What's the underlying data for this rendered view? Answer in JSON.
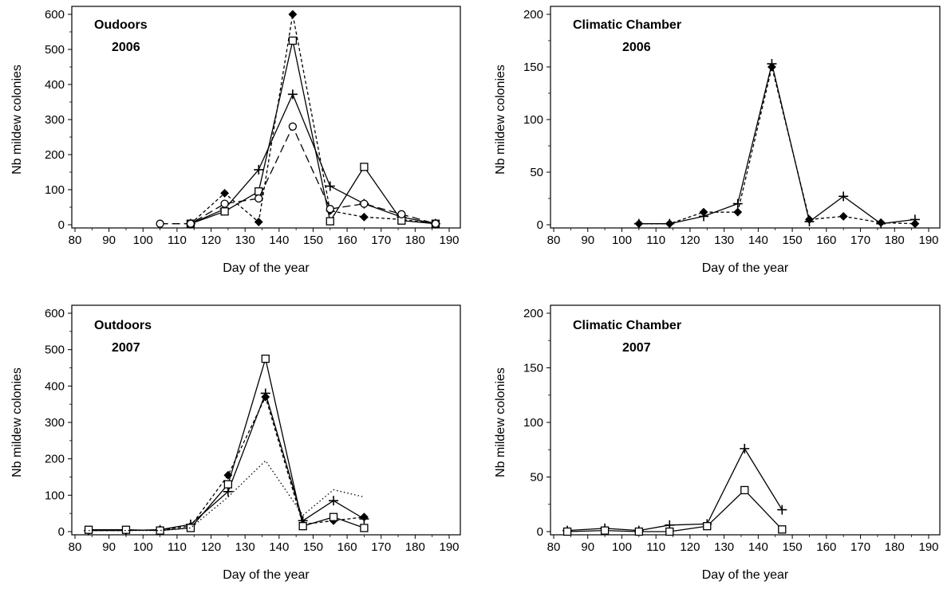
{
  "chart_data": [
    {
      "id": "p1",
      "type": "line",
      "title": "Oudoors",
      "subtitle": "2006",
      "xlabel": "Day of the year",
      "ylabel": "Nb mildew colonies",
      "xlim": [
        80,
        190
      ],
      "ylim": [
        0,
        600
      ],
      "xticks": [
        80,
        90,
        100,
        110,
        120,
        130,
        140,
        150,
        160,
        170,
        180,
        190
      ],
      "yticks": [
        0,
        100,
        200,
        300,
        400,
        500,
        600
      ],
      "series": [
        {
          "marker": "plus",
          "dash": "solid",
          "points": [
            [
              114,
              3
            ],
            [
              124,
              45
            ],
            [
              134,
              157
            ],
            [
              144,
              372
            ],
            [
              155,
              110
            ],
            [
              165,
              60
            ],
            [
              176,
              22
            ],
            [
              186,
              3
            ]
          ]
        },
        {
          "marker": "diamond",
          "dash": "short",
          "points": [
            [
              114,
              3
            ],
            [
              124,
              90
            ],
            [
              134,
              8
            ],
            [
              144,
              600
            ],
            [
              155,
              40
            ],
            [
              165,
              22
            ],
            [
              176,
              15
            ],
            [
              186,
              3
            ]
          ]
        },
        {
          "marker": "square",
          "dash": "solid",
          "points": [
            [
              114,
              3
            ],
            [
              124,
              38
            ],
            [
              134,
              95
            ],
            [
              144,
              525
            ],
            [
              155,
              10
            ],
            [
              165,
              165
            ],
            [
              176,
              12
            ],
            [
              186,
              3
            ]
          ]
        },
        {
          "marker": "circle",
          "dash": "long",
          "points": [
            [
              105,
              3
            ],
            [
              114,
              3
            ],
            [
              124,
              60
            ],
            [
              134,
              75
            ],
            [
              144,
              280
            ],
            [
              155,
              45
            ],
            [
              165,
              60
            ],
            [
              176,
              30
            ],
            [
              186,
              3
            ]
          ]
        }
      ]
    },
    {
      "id": "p2",
      "type": "line",
      "title": "Climatic Chamber",
      "subtitle": "2006",
      "xlabel": "Day of the year",
      "ylabel": "Nb mildew colonies",
      "xlim": [
        80,
        190
      ],
      "ylim": [
        0,
        200
      ],
      "xticks": [
        80,
        90,
        100,
        110,
        120,
        130,
        140,
        150,
        160,
        170,
        180,
        190
      ],
      "yticks": [
        0,
        50,
        100,
        150,
        200
      ],
      "series": [
        {
          "marker": "plus",
          "dash": "solid",
          "points": [
            [
              105,
              1
            ],
            [
              114,
              1
            ],
            [
              124,
              8
            ],
            [
              134,
              20
            ],
            [
              144,
              153
            ],
            [
              155,
              3
            ],
            [
              165,
              27
            ],
            [
              176,
              1
            ],
            [
              186,
              5
            ]
          ]
        },
        {
          "marker": "diamond",
          "dash": "short",
          "points": [
            [
              105,
              1
            ],
            [
              114,
              1
            ],
            [
              124,
              12
            ],
            [
              134,
              12
            ],
            [
              144,
              150
            ],
            [
              155,
              5
            ],
            [
              165,
              8
            ],
            [
              176,
              2
            ],
            [
              186,
              1
            ]
          ]
        }
      ]
    },
    {
      "id": "p3",
      "type": "line",
      "title": "Outdoors",
      "subtitle": "2007",
      "xlabel": "Day of the year",
      "ylabel": "Nb mildew colonies",
      "xlim": [
        80,
        190
      ],
      "ylim": [
        0,
        600
      ],
      "xticks": [
        80,
        90,
        100,
        110,
        120,
        130,
        140,
        150,
        160,
        170,
        180,
        190
      ],
      "yticks": [
        0,
        100,
        200,
        300,
        400,
        500,
        600
      ],
      "series": [
        {
          "marker": "plus",
          "dash": "solid",
          "points": [
            [
              84,
              3
            ],
            [
              95,
              3
            ],
            [
              105,
              5
            ],
            [
              114,
              20
            ],
            [
              125,
              110
            ],
            [
              136,
              380
            ],
            [
              147,
              30
            ],
            [
              156,
              85
            ],
            [
              165,
              35
            ]
          ]
        },
        {
          "marker": "diamond",
          "dash": "short",
          "points": [
            [
              84,
              3
            ],
            [
              95,
              3
            ],
            [
              105,
              5
            ],
            [
              114,
              15
            ],
            [
              125,
              155
            ],
            [
              136,
              370
            ],
            [
              147,
              20
            ],
            [
              156,
              30
            ],
            [
              165,
              40
            ]
          ]
        },
        {
          "marker": "square",
          "dash": "solid",
          "points": [
            [
              84,
              5
            ],
            [
              95,
              5
            ],
            [
              105,
              3
            ],
            [
              114,
              10
            ],
            [
              125,
              130
            ],
            [
              136,
              475
            ],
            [
              147,
              15
            ],
            [
              156,
              40
            ],
            [
              165,
              10
            ]
          ]
        },
        {
          "marker": "none",
          "dash": "dotted",
          "points": [
            [
              84,
              3
            ],
            [
              95,
              3
            ],
            [
              105,
              3
            ],
            [
              114,
              10
            ],
            [
              125,
              95
            ],
            [
              136,
              195
            ],
            [
              147,
              45
            ],
            [
              156,
              115
            ],
            [
              165,
              95
            ]
          ]
        }
      ]
    },
    {
      "id": "p4",
      "type": "line",
      "title": "Climatic Chamber",
      "subtitle": "2007",
      "xlabel": "Day of the year",
      "ylabel": "Nb mildew colonies",
      "xlim": [
        80,
        190
      ],
      "ylim": [
        0,
        200
      ],
      "xticks": [
        80,
        90,
        100,
        110,
        120,
        130,
        140,
        150,
        160,
        170,
        180,
        190
      ],
      "yticks": [
        0,
        50,
        100,
        150,
        200
      ],
      "series": [
        {
          "marker": "plus",
          "dash": "solid",
          "points": [
            [
              84,
              1
            ],
            [
              95,
              3
            ],
            [
              105,
              1
            ],
            [
              114,
              6
            ],
            [
              125,
              7
            ],
            [
              136,
              76
            ],
            [
              147,
              20
            ]
          ]
        },
        {
          "marker": "square",
          "dash": "solid",
          "points": [
            [
              84,
              0
            ],
            [
              95,
              1
            ],
            [
              105,
              0
            ],
            [
              114,
              0
            ],
            [
              125,
              5
            ],
            [
              136,
              38
            ],
            [
              147,
              2
            ]
          ]
        }
      ]
    }
  ]
}
